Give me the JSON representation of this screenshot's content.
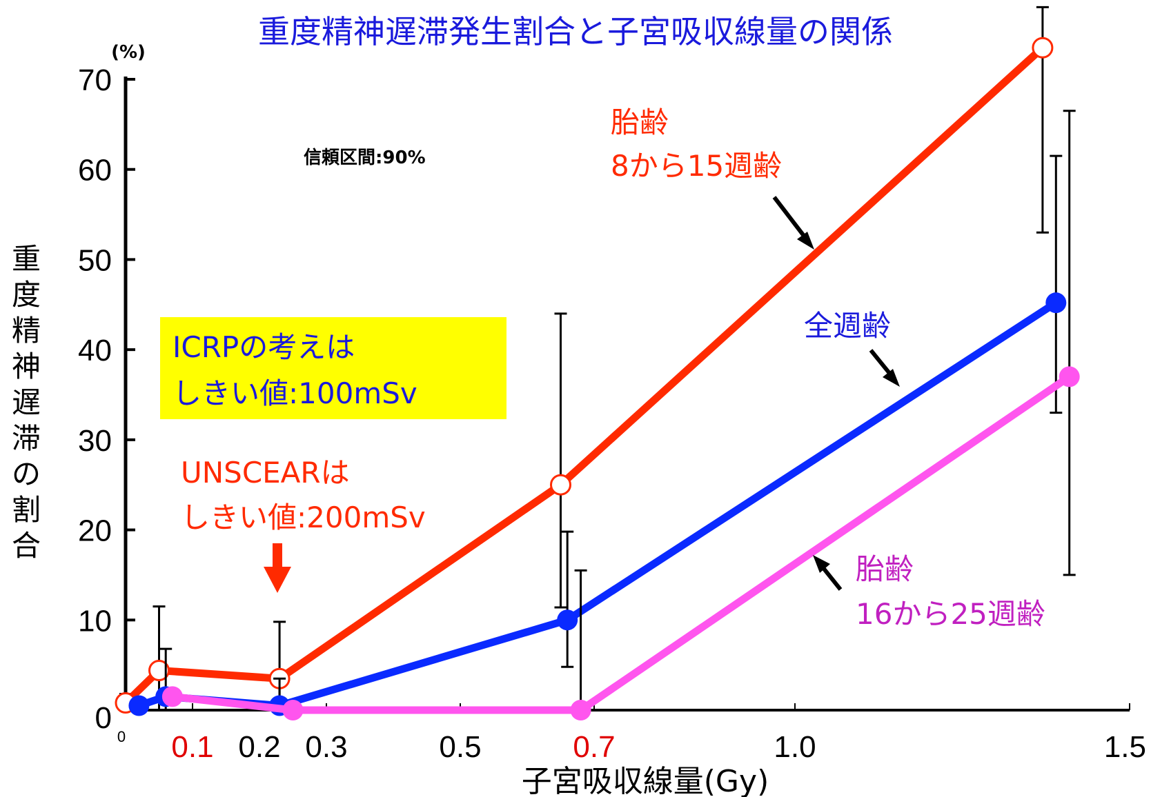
{
  "chart_data": {
    "type": "line",
    "title": "重度精神遅滞発生割合と子宮吸収線量の関係",
    "xlabel": "子宮吸収線量(Gy)",
    "ylabel": "重度精神遅滞の割合",
    "y_unit": "(%)",
    "xlim": [
      0,
      1.5
    ],
    "ylim": [
      0,
      70
    ],
    "x_ticks": [
      {
        "value": 0,
        "label": "0",
        "color": "#000000",
        "small": true
      },
      {
        "value": 0.1,
        "label": "0.1",
        "color": "#e00000"
      },
      {
        "value": 0.2,
        "label": "0.2",
        "color": "#000000"
      },
      {
        "value": 0.3,
        "label": "0.3",
        "color": "#000000"
      },
      {
        "value": 0.5,
        "label": "0.5",
        "color": "#000000"
      },
      {
        "value": 0.7,
        "label": "0.7",
        "color": "#e00000"
      },
      {
        "value": 1.0,
        "label": "1.0",
        "color": "#000000"
      },
      {
        "value": 1.5,
        "label": "1.5",
        "color": "#000000"
      }
    ],
    "y_ticks": [
      {
        "value": 0,
        "label": "0"
      },
      {
        "value": 10,
        "label": "10"
      },
      {
        "value": 20,
        "label": "20"
      },
      {
        "value": 30,
        "label": "30"
      },
      {
        "value": 40,
        "label": "40"
      },
      {
        "value": 50,
        "label": "50"
      },
      {
        "value": 60,
        "label": "60"
      },
      {
        "value": 70,
        "label": "70"
      }
    ],
    "confidence_note": "信頼区間:90%",
    "series": [
      {
        "name": "胎齢 8から15週齢",
        "color": "#ff2a00",
        "marker": "open-circle",
        "points": [
          {
            "x": 0.0,
            "y": 0.8,
            "lo": 0,
            "hi": 1.8
          },
          {
            "x": 0.05,
            "y": 4.4,
            "lo": 0,
            "hi": 11.5
          },
          {
            "x": 0.23,
            "y": 3.5,
            "lo": 0,
            "hi": 9.8
          },
          {
            "x": 0.65,
            "y": 25.0,
            "lo": 11.4,
            "hi": 44.0
          },
          {
            "x": 1.37,
            "y": 73.5,
            "lo": 53.0,
            "hi": 78.0
          }
        ]
      },
      {
        "name": "全週齢",
        "color": "#0a2aff",
        "marker": "filled-circle",
        "points": [
          {
            "x": 0.02,
            "y": 0.5,
            "lo": 0,
            "hi": 0
          },
          {
            "x": 0.06,
            "y": 1.5,
            "lo": 0,
            "hi": 6.8
          },
          {
            "x": 0.23,
            "y": 0.5,
            "lo": 0,
            "hi": 3.5
          },
          {
            "x": 0.66,
            "y": 10.0,
            "lo": 4.8,
            "hi": 19.8
          },
          {
            "x": 1.39,
            "y": 45.2,
            "lo": 33.0,
            "hi": 61.5
          }
        ]
      },
      {
        "name": "胎齢 16から25週齢",
        "color": "#ff55ee",
        "marker": "filled-circle",
        "points": [
          {
            "x": 0.07,
            "y": 1.5,
            "lo": 0,
            "hi": 0
          },
          {
            "x": 0.25,
            "y": 0.0,
            "lo": 0,
            "hi": 0
          },
          {
            "x": 0.68,
            "y": 0.0,
            "lo": 0,
            "hi": 15.5
          },
          {
            "x": 1.41,
            "y": 37.0,
            "lo": 15.0,
            "hi": 66.5
          }
        ]
      }
    ]
  },
  "annotations": {
    "icrp_line1": "ICRPの考えは",
    "icrp_line2": "しきい値:100mSv",
    "icrp_box_color": "#ffff00",
    "unscear_line1": "UNSCEARは",
    "unscear_line2": "しきい値:200mSv",
    "label_8_15_line1": "胎齢",
    "label_8_15_line2": "8から15週齢",
    "label_all": "全週齢",
    "label_16_25_line1": "胎齢",
    "label_16_25_line2": "16から25週齢",
    "color_red": "#ff2a00",
    "color_blue": "#1a1adc",
    "color_magenta": "#c020c0"
  }
}
